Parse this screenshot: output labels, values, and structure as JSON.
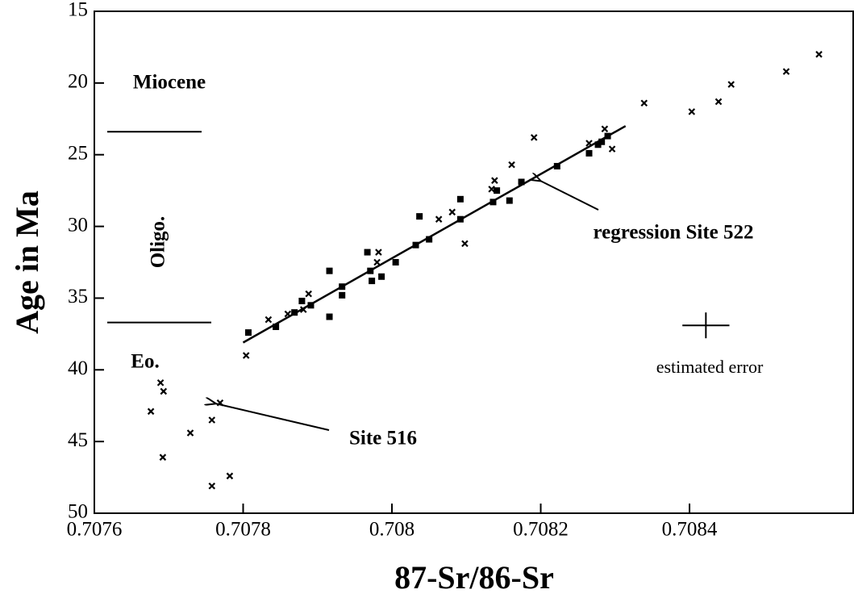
{
  "chart_data": {
    "type": "scatter",
    "xlabel": "87-Sr/86-Sr",
    "ylabel": "Age in Ma",
    "xlim": [
      0.7076,
      0.70862
    ],
    "ylim": [
      50,
      15
    ],
    "xticks": [
      0.7076,
      0.7078,
      0.708,
      0.7082,
      0.7084
    ],
    "yticks": [
      15,
      20,
      25,
      30,
      35,
      40,
      45,
      50
    ],
    "series": [
      {
        "marker": "x",
        "color": "#000000",
        "x": [
          0.708574,
          0.70853,
          0.708456,
          0.708439,
          0.708403,
          0.708339,
          0.708286,
          0.708296,
          0.708265,
          0.708191,
          0.708161,
          0.708138,
          0.708134,
          0.708098,
          0.708081,
          0.708063,
          0.707982,
          0.70798,
          0.707888,
          0.707881,
          0.70786,
          0.707834,
          0.707804,
          0.707769,
          0.707782,
          0.707758,
          0.707758,
          0.707729,
          0.707693,
          0.707689,
          0.707676,
          0.707692
        ],
        "values": [
          18.0,
          19.2,
          20.1,
          21.3,
          22.0,
          21.4,
          23.2,
          24.6,
          24.2,
          23.8,
          25.7,
          26.8,
          27.4,
          31.2,
          29.0,
          29.5,
          31.8,
          32.5,
          34.7,
          35.8,
          36.1,
          36.5,
          39.0,
          42.3,
          47.4,
          43.5,
          48.1,
          44.4,
          41.5,
          40.9,
          42.9,
          46.1
        ]
      },
      {
        "marker": "square",
        "color": "#000000",
        "x": [
          0.707807,
          0.707844,
          0.707869,
          0.707879,
          0.707891,
          0.707916,
          0.707916,
          0.707933,
          0.707933,
          0.707967,
          0.707971,
          0.707973,
          0.707986,
          0.708005,
          0.708032,
          0.70805,
          0.708037,
          0.708092,
          0.708092,
          0.708136,
          0.708141,
          0.708158,
          0.708174,
          0.708222,
          0.708265,
          0.708277,
          0.708282,
          0.70829
        ],
        "values": [
          37.4,
          37.0,
          36.0,
          35.2,
          35.5,
          33.1,
          36.3,
          34.8,
          34.2,
          31.8,
          33.1,
          33.8,
          33.5,
          32.5,
          31.3,
          30.9,
          29.3,
          28.1,
          29.5,
          28.3,
          27.5,
          28.2,
          26.9,
          25.8,
          24.9,
          24.3,
          24.1,
          23.7
        ]
      }
    ],
    "regression": {
      "x": [
        0.7078,
        0.708314
      ],
      "values": [
        38.1,
        23.0
      ]
    },
    "epoch_boundaries": [
      23.4,
      36.7
    ],
    "epochs": [
      "Miocene",
      "Oligo.",
      "Eo."
    ],
    "annotations": [
      "regression Site 522",
      "Site 516",
      "estimated error"
    ],
    "error_bar": {
      "x": 0.708422,
      "y": 36.9,
      "x_error": 3.16e-05,
      "y_error": 0.9
    }
  }
}
